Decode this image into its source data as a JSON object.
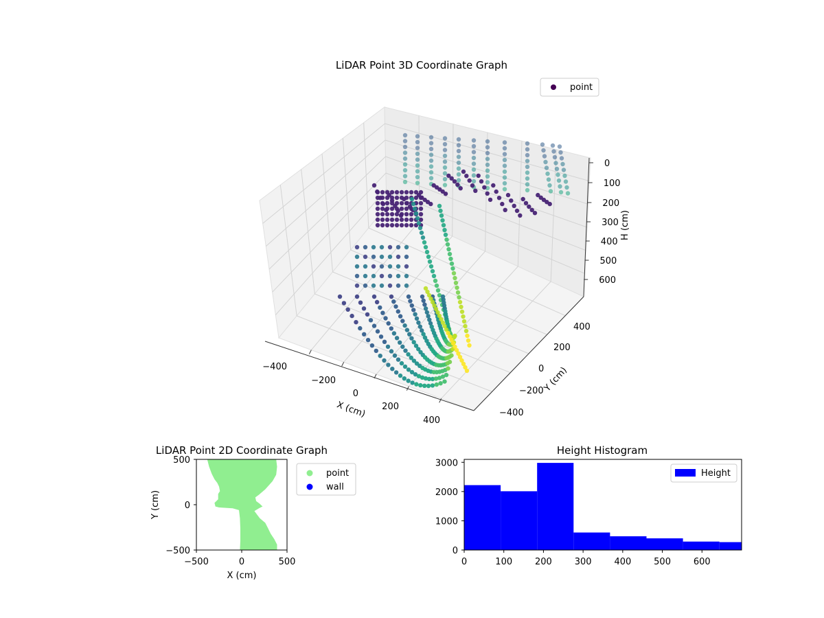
{
  "chart_data": [
    {
      "type": "scatter3d",
      "title": "LiDAR Point 3D Coordinate Graph",
      "xlabel": "X (cm)",
      "ylabel": "Y (cm)",
      "zlabel": "H (cm)",
      "x_ticks": [
        "−400",
        "−200",
        "0",
        "200",
        "400"
      ],
      "y_ticks": [
        "400",
        "200",
        "0",
        "−200",
        "−400"
      ],
      "z_ticks": [
        "0",
        "100",
        "200",
        "300",
        "400",
        "500",
        "600"
      ],
      "xlim": [
        -500,
        500
      ],
      "ylim": [
        -500,
        500
      ],
      "zlim": [
        0,
        700
      ],
      "z_inverted": true,
      "colormap": "viridis",
      "legend": {
        "placement": "top-right",
        "entries": [
          {
            "name": "point",
            "color": "#440154"
          }
        ]
      }
    },
    {
      "type": "scatter",
      "title": "LiDAR Point 2D Coordinate Graph",
      "xlabel": "X (cm)",
      "ylabel": "Y (cm)",
      "x_ticks": [
        "−500",
        "0",
        "500"
      ],
      "y_ticks": [
        "500",
        "0",
        "−500"
      ],
      "xlim": [
        -500,
        500
      ],
      "ylim": [
        -500,
        500
      ],
      "legend": {
        "placement": "outside-right",
        "entries": [
          {
            "name": "point",
            "color": "#90ee90"
          },
          {
            "name": "wall",
            "color": "#0000ff"
          }
        ]
      },
      "series": [
        {
          "name": "point",
          "color": "#90ee90",
          "outline": [
            [
              -380,
              500
            ],
            [
              -360,
              420
            ],
            [
              -330,
              340
            ],
            [
              -300,
              280
            ],
            [
              -270,
              240
            ],
            [
              -250,
              200
            ],
            [
              -240,
              150
            ],
            [
              -260,
              120
            ],
            [
              -260,
              60
            ],
            [
              -300,
              20
            ],
            [
              -290,
              -20
            ],
            [
              -250,
              -30
            ],
            [
              -100,
              -40
            ],
            [
              -30,
              -60
            ],
            [
              -20,
              -150
            ],
            [
              -15,
              -260
            ],
            [
              -15,
              -400
            ],
            [
              -20,
              -500
            ],
            [
              390,
              -500
            ],
            [
              390,
              -440
            ],
            [
              360,
              -380
            ],
            [
              320,
              -320
            ],
            [
              290,
              -260
            ],
            [
              260,
              -200
            ],
            [
              200,
              -150
            ],
            [
              170,
              -110
            ],
            [
              140,
              -70
            ],
            [
              190,
              -40
            ],
            [
              230,
              -20
            ],
            [
              200,
              10
            ],
            [
              160,
              40
            ],
            [
              150,
              80
            ],
            [
              190,
              110
            ],
            [
              260,
              170
            ],
            [
              340,
              260
            ],
            [
              380,
              330
            ],
            [
              390,
              420
            ],
            [
              380,
              500
            ]
          ]
        },
        {
          "name": "wall",
          "color": "#0000ff",
          "points": []
        }
      ]
    },
    {
      "type": "bar",
      "title": "Height Histogram",
      "xlabel": "",
      "ylabel": "",
      "x_ticks": [
        "0",
        "100",
        "200",
        "300",
        "400",
        "500",
        "600"
      ],
      "y_ticks": [
        "0",
        "1000",
        "2000",
        "3000"
      ],
      "xlim": [
        0,
        700
      ],
      "ylim": [
        0,
        3100
      ],
      "legend": {
        "placement": "top-right",
        "entries": [
          {
            "name": "Height",
            "color": "#0000ff"
          }
        ]
      },
      "series": [
        {
          "name": "Height",
          "color": "#0000ff",
          "bins": [
            {
              "start": 0,
              "end": 92,
              "count": 2220
            },
            {
              "start": 92,
              "end": 184,
              "count": 2010
            },
            {
              "start": 184,
              "end": 276,
              "count": 2980
            },
            {
              "start": 276,
              "end": 368,
              "count": 600
            },
            {
              "start": 368,
              "end": 460,
              "count": 470
            },
            {
              "start": 460,
              "end": 552,
              "count": 400
            },
            {
              "start": 552,
              "end": 644,
              "count": 290
            },
            {
              "start": 644,
              "end": 700,
              "count": 270
            }
          ]
        }
      ]
    }
  ]
}
